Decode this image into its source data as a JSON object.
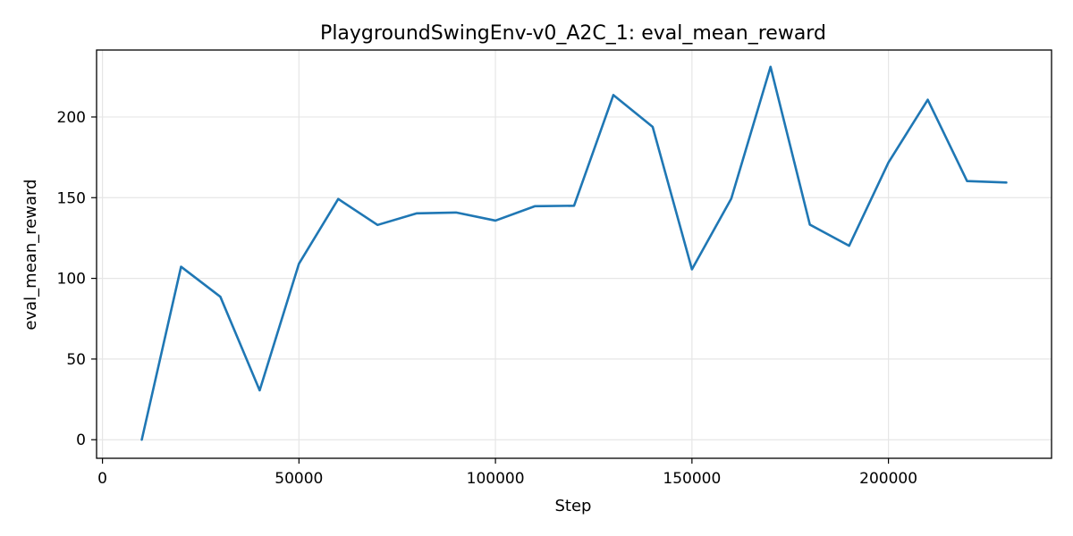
{
  "chart_data": {
    "type": "line",
    "title": "PlaygroundSwingEnv-v0_A2C_1: eval_mean_reward",
    "xlabel": "Step",
    "ylabel": "eval_mean_reward",
    "xlim": [
      -1500,
      241500
    ],
    "ylim": [
      -11.5,
      241.5
    ],
    "xticks": [
      0,
      50000,
      100000,
      150000,
      200000
    ],
    "yticks": [
      0,
      50,
      100,
      150,
      200
    ],
    "grid": true,
    "series_color": "#1f77b4",
    "series": [
      {
        "x": [
          10000,
          20000,
          30000,
          40000,
          50000,
          60000,
          70000,
          80000,
          90000,
          100000,
          110000,
          120000,
          130000,
          140000,
          150000,
          160000,
          170000,
          180000,
          190000,
          200000,
          210000,
          220000,
          230000
        ],
        "values": [
          0,
          107.2,
          88.6,
          30.6,
          109.1,
          149.2,
          133.1,
          140.3,
          140.8,
          135.8,
          144.7,
          145.0,
          213.6,
          193.9,
          105.6,
          149.4,
          231.1,
          133.3,
          120.2,
          171.8,
          210.7,
          160.3,
          159.4
        ]
      }
    ]
  }
}
